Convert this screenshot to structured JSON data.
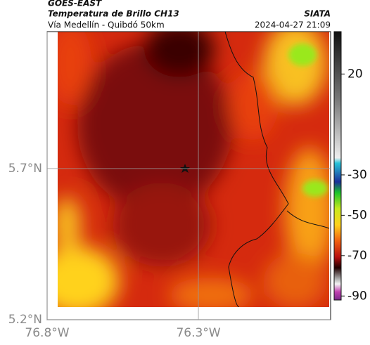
{
  "header": {
    "product": "GOES-EAST",
    "title": "Temperatura de Brillo CH13",
    "subtitle": "Vía Medellín - Quibdó 50km",
    "source": "SIATA",
    "datetime": "2024-04-27 21:09"
  },
  "map": {
    "xlim": [
      -76.8,
      -75.863
    ],
    "ylim": [
      5.2,
      6.153
    ],
    "xticks": [
      {
        "value": -76.8,
        "label": "76.8°W"
      },
      {
        "value": -76.3,
        "label": "76.3°W"
      }
    ],
    "yticks": [
      {
        "value": 5.2,
        "label": "5.2°N"
      },
      {
        "value": 5.7,
        "label": "5.7°N"
      }
    ]
  },
  "colorbar": {
    "clim": [
      -92,
      41
    ],
    "ticks": [
      20,
      -30,
      -50,
      -70,
      -90
    ]
  }
}
